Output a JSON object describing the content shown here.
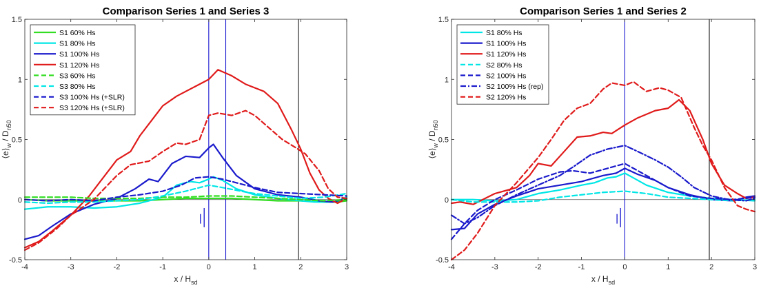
{
  "chart_data": [
    {
      "type": "line",
      "title": "Comparison Series 1 and Series 3",
      "xlabel": "x / H",
      "xlabel_sub": "sd",
      "ylabel_pre": "⟨e⟩",
      "ylabel_sub1": "w",
      "ylabel_mid": " / D",
      "ylabel_sub2": "n50",
      "xlim": [
        -4,
        3
      ],
      "ylim": [
        -0.5,
        1.5
      ],
      "xticks": [
        -4,
        -3,
        -2,
        -1,
        0,
        1,
        2,
        3
      ],
      "yticks": [
        -0.5,
        0,
        0.5,
        1,
        1.5
      ],
      "legend_position": "top-left",
      "vlines": [
        {
          "x": 0,
          "color": "#0000cc"
        },
        {
          "x": 0.37,
          "color": "#0000cc"
        },
        {
          "x": 1.95,
          "color": "#000000"
        }
      ],
      "hline": 0,
      "markers": [
        {
          "x": -0.18,
          "y1": -0.12,
          "y2": -0.2,
          "color": "#0000cc"
        },
        {
          "x": -0.1,
          "y1": -0.07,
          "y2": -0.23,
          "color": "#0000cc"
        }
      ],
      "series": [
        {
          "name": "S1 60% Hs",
          "color": "#33dd22",
          "dash": "solid",
          "x": [
            -4,
            -3.5,
            -3,
            -2.5,
            -2,
            -1.5,
            -1,
            -0.5,
            0,
            0.5,
            1,
            1.5,
            2,
            2.5,
            2.8,
            3
          ],
          "y": [
            0,
            -0.01,
            -0.01,
            -0.01,
            -0.01,
            -0.01,
            0,
            0.01,
            0.01,
            0.01,
            0,
            -0.01,
            -0.01,
            -0.02,
            -0.02,
            -0.01
          ]
        },
        {
          "name": "S1 80% Hs",
          "color": "#00e6e6",
          "dash": "solid",
          "x": [
            -4,
            -3.5,
            -3,
            -2.5,
            -2,
            -1.5,
            -1,
            -0.7,
            -0.4,
            -0.2,
            0,
            0.1,
            0.3,
            0.6,
            1,
            1.5,
            2,
            2.3,
            2.6,
            2.8,
            3
          ],
          "y": [
            -0.08,
            -0.06,
            -0.06,
            -0.07,
            -0.06,
            -0.03,
            0.02,
            0.12,
            0.15,
            0.14,
            0.17,
            0.19,
            0.16,
            0.09,
            0.04,
            0.01,
            -0.01,
            -0.02,
            -0.02,
            -0.01,
            0.02
          ]
        },
        {
          "name": "S1 100% Hs",
          "color": "#1a1acc",
          "dash": "solid",
          "x": [
            -4,
            -3.7,
            -3.4,
            -3,
            -2.5,
            -2,
            -1.6,
            -1.3,
            -1.1,
            -0.8,
            -0.5,
            -0.2,
            0,
            0.1,
            0.3,
            0.6,
            1,
            1.5,
            2,
            2.4,
            2.7,
            3
          ],
          "y": [
            -0.33,
            -0.3,
            -0.22,
            -0.12,
            -0.04,
            0.01,
            0.09,
            0.17,
            0.15,
            0.3,
            0.36,
            0.35,
            0.43,
            0.46,
            0.35,
            0.2,
            0.09,
            0.04,
            0.02,
            -0.01,
            -0.02,
            0.01
          ]
        },
        {
          "name": "S1 120% Hs",
          "color": "#e01a1a",
          "dash": "solid",
          "x": [
            -4,
            -3.7,
            -3.4,
            -3,
            -2.6,
            -2.3,
            -2,
            -1.7,
            -1.5,
            -1.2,
            -1,
            -0.7,
            -0.3,
            0,
            0.2,
            0.5,
            0.8,
            1.2,
            1.5,
            1.8,
            2,
            2.2,
            2.4,
            2.6,
            2.8,
            3
          ],
          "y": [
            -0.4,
            -0.35,
            -0.26,
            -0.13,
            0.03,
            0.18,
            0.33,
            0.4,
            0.53,
            0.68,
            0.78,
            0.86,
            0.94,
            1.0,
            1.08,
            1.03,
            0.96,
            0.9,
            0.8,
            0.58,
            0.42,
            0.22,
            0.08,
            0.01,
            -0.03,
            0.01
          ]
        },
        {
          "name": "S3 60% Hs",
          "color": "#33dd22",
          "dash": "dashed",
          "x": [
            -4,
            -3.5,
            -3,
            -2.5,
            -2,
            -1.5,
            -1,
            -0.5,
            0,
            0.5,
            1,
            1.5,
            2,
            2.5,
            3
          ],
          "y": [
            0.02,
            0.02,
            0.02,
            0.01,
            0.01,
            0.01,
            0.02,
            0.02,
            0.03,
            0.03,
            0.02,
            0.01,
            0,
            -0.01,
            0
          ]
        },
        {
          "name": "S3 80% Hs",
          "color": "#00e6e6",
          "dash": "dashed",
          "x": [
            -4,
            -3.5,
            -3,
            -2.5,
            -2,
            -1.5,
            -1,
            -0.5,
            0,
            0.3,
            0.7,
            1,
            1.5,
            2,
            2.5,
            3
          ],
          "y": [
            -0.02,
            -0.03,
            -0.02,
            -0.02,
            -0.01,
            0.0,
            0.03,
            0.07,
            0.12,
            0.1,
            0.07,
            0.05,
            0.03,
            0.01,
            0.02,
            0.05
          ]
        },
        {
          "name": "S3 100% Hs (+SLR)",
          "color": "#1a1acc",
          "dash": "dashed",
          "x": [
            -4,
            -3.5,
            -3,
            -2.5,
            -2,
            -1.5,
            -1,
            -0.6,
            -0.3,
            0,
            0.3,
            0.7,
            1,
            1.5,
            2,
            2.5,
            3
          ],
          "y": [
            0,
            -0.01,
            0,
            -0.01,
            0.02,
            0.04,
            0.07,
            0.12,
            0.18,
            0.19,
            0.17,
            0.13,
            0.1,
            0.06,
            0.05,
            0.04,
            0.03
          ]
        },
        {
          "name": "S3 120% Hs (+SLR)",
          "color": "#e01a1a",
          "dash": "dashed",
          "x": [
            -4,
            -3.7,
            -3.3,
            -3,
            -2.5,
            -2,
            -1.7,
            -1.3,
            -1,
            -0.7,
            -0.5,
            -0.2,
            0,
            0.2,
            0.5,
            0.8,
            1,
            1.3,
            1.6,
            1.9,
            2.1,
            2.4,
            2.6,
            2.8,
            3
          ],
          "y": [
            -0.42,
            -0.36,
            -0.24,
            -0.13,
            0.0,
            0.2,
            0.29,
            0.32,
            0.4,
            0.47,
            0.46,
            0.5,
            0.7,
            0.72,
            0.7,
            0.74,
            0.7,
            0.6,
            0.5,
            0.43,
            0.38,
            0.24,
            0.09,
            0.02,
            0.01
          ]
        }
      ]
    },
    {
      "type": "line",
      "title": "Comparison Series 1 and Series 2",
      "xlabel": "x / H",
      "xlabel_sub": "sd",
      "ylabel_pre": "⟨e⟩",
      "ylabel_sub1": "w",
      "ylabel_mid": " / D",
      "ylabel_sub2": "n50",
      "xlim": [
        -4,
        3
      ],
      "ylim": [
        -0.5,
        1.5
      ],
      "xticks": [
        -4,
        -3,
        -2,
        -1,
        0,
        1,
        2,
        3
      ],
      "yticks": [
        -0.5,
        0,
        0.5,
        1,
        1.5
      ],
      "legend_position": "top-left",
      "vlines": [
        {
          "x": 0,
          "color": "#0000cc"
        },
        {
          "x": 1.95,
          "color": "#000000"
        }
      ],
      "hline": 0,
      "markers": [
        {
          "x": -0.18,
          "y1": -0.12,
          "y2": -0.2,
          "color": "#0000cc"
        },
        {
          "x": -0.1,
          "y1": -0.07,
          "y2": -0.23,
          "color": "#0000cc"
        }
      ],
      "series": [
        {
          "name": "S1 80% Hs",
          "color": "#00e6e6",
          "dash": "solid",
          "x": [
            -4,
            -3.5,
            -3,
            -2.5,
            -2,
            -1.5,
            -1,
            -0.7,
            -0.4,
            -0.2,
            0,
            0.2,
            0.5,
            1,
            1.5,
            2,
            2.5,
            3
          ],
          "y": [
            0,
            0,
            -0.01,
            0.0,
            0.05,
            0.08,
            0.12,
            0.14,
            0.18,
            0.19,
            0.22,
            0.18,
            0.12,
            0.06,
            0.03,
            0.01,
            0,
            -0.01
          ]
        },
        {
          "name": "S1 100% Hs",
          "color": "#1a1acc",
          "dash": "solid",
          "x": [
            -4,
            -3.7,
            -3.4,
            -3,
            -2.5,
            -2,
            -1.5,
            -1,
            -0.5,
            -0.2,
            0,
            0.3,
            0.7,
            1,
            1.5,
            2,
            2.5,
            2.8,
            3
          ],
          "y": [
            -0.25,
            -0.24,
            -0.12,
            -0.04,
            0.03,
            0.09,
            0.12,
            0.15,
            0.2,
            0.22,
            0.26,
            0.21,
            0.16,
            0.1,
            0.04,
            0.0,
            -0.01,
            0.02,
            0.03
          ]
        },
        {
          "name": "S1 120% Hs",
          "color": "#e01a1a",
          "dash": "solid",
          "x": [
            -4,
            -3.8,
            -3.5,
            -3,
            -2.5,
            -2.2,
            -2,
            -1.7,
            -1.4,
            -1.1,
            -0.8,
            -0.5,
            -0.3,
            0,
            0.3,
            0.7,
            1,
            1.25,
            1.5,
            1.8,
            2,
            2.3,
            2.6,
            2.8,
            3
          ],
          "y": [
            -0.03,
            -0.02,
            -0.04,
            0.05,
            0.1,
            0.2,
            0.3,
            0.28,
            0.4,
            0.52,
            0.53,
            0.56,
            0.55,
            0.62,
            0.68,
            0.74,
            0.76,
            0.83,
            0.74,
            0.5,
            0.3,
            0.12,
            0.05,
            0.01,
            0.02
          ]
        },
        {
          "name": "S2 80% Hs",
          "color": "#00e6e6",
          "dash": "dashed",
          "x": [
            -4,
            -3.5,
            -3,
            -2.5,
            -2,
            -1.5,
            -1,
            -0.5,
            0,
            0.5,
            1,
            1.5,
            2,
            2.5,
            3
          ],
          "y": [
            0,
            -0.02,
            -0.02,
            -0.02,
            -0.01,
            0.02,
            0.04,
            0.06,
            0.07,
            0.05,
            0.02,
            0.01,
            0,
            -0.01,
            0
          ]
        },
        {
          "name": "S2 100% Hs",
          "color": "#1a1acc",
          "dash": "dashed",
          "x": [
            -4,
            -3.7,
            -3.4,
            -3,
            -2.5,
            -2,
            -1.5,
            -1.2,
            -0.8,
            -0.4,
            0,
            0.3,
            0.7,
            1,
            1.5,
            2,
            2.5,
            3
          ],
          "y": [
            -0.33,
            -0.2,
            -0.09,
            0.0,
            0.08,
            0.17,
            0.23,
            0.24,
            0.22,
            0.26,
            0.3,
            0.24,
            0.16,
            0.1,
            0.03,
            0.01,
            0.0,
            0.02
          ]
        },
        {
          "name": "S2 100% Hs (rep)",
          "color": "#1a1acc",
          "dash": "dashdot",
          "x": [
            -4,
            -3.7,
            -3.4,
            -3,
            -2.5,
            -2,
            -1.5,
            -1.2,
            -0.8,
            -0.4,
            0,
            0.3,
            0.7,
            1,
            1.3,
            1.6,
            2,
            2.4,
            2.8,
            3
          ],
          "y": [
            -0.13,
            -0.2,
            -0.15,
            -0.05,
            0.04,
            0.12,
            0.2,
            0.27,
            0.37,
            0.42,
            0.45,
            0.4,
            0.33,
            0.27,
            0.19,
            0.1,
            0.03,
            0.0,
            -0.01,
            0.01
          ]
        },
        {
          "name": "S2 120% Hs",
          "color": "#e01a1a",
          "dash": "dashed",
          "x": [
            -4,
            -3.7,
            -3.4,
            -3,
            -2.5,
            -2,
            -1.7,
            -1.4,
            -1.1,
            -0.8,
            -0.5,
            -0.3,
            0,
            0.2,
            0.5,
            0.8,
            1,
            1.3,
            1.6,
            1.8,
            2,
            2.3,
            2.6,
            2.8,
            3
          ],
          "y": [
            -0.5,
            -0.42,
            -0.28,
            -0.05,
            0.14,
            0.35,
            0.5,
            0.66,
            0.76,
            0.8,
            0.92,
            0.97,
            0.95,
            0.98,
            0.9,
            0.93,
            0.91,
            0.85,
            0.6,
            0.45,
            0.33,
            0.1,
            -0.05,
            -0.08,
            -0.1
          ]
        }
      ]
    }
  ]
}
